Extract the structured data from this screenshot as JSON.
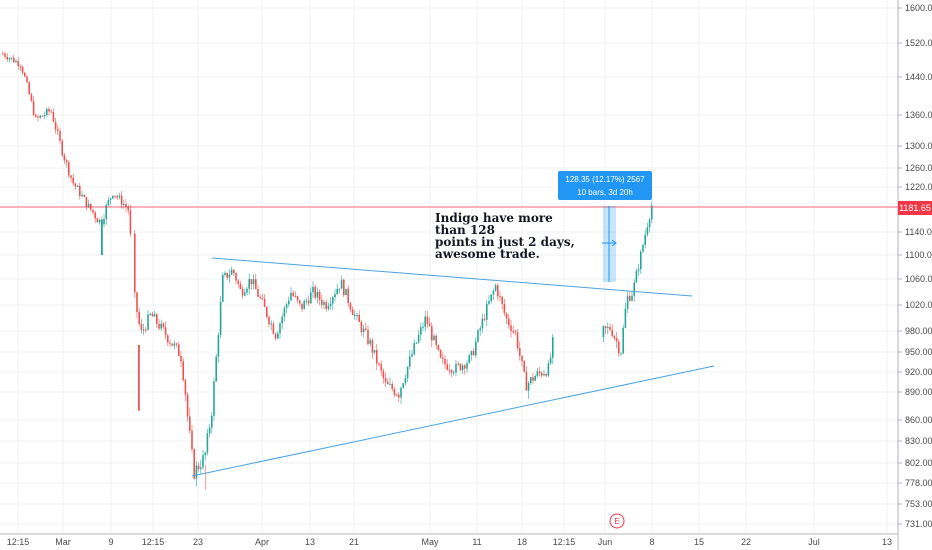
{
  "chart_data": {
    "type": "candlestick",
    "symbol": "Indigo",
    "y_axis_ticks": [
      "1600.00",
      "1520.00",
      "1440.00",
      "1360.00",
      "1300.00",
      "1260.00",
      "1220.00",
      "1180.00",
      "1140.00",
      "1100.00",
      "1060.00",
      "1020.00",
      "980.00",
      "950.00",
      "920.00",
      "890.00",
      "860.00",
      "830.00",
      "802.00",
      "778.00",
      "753.00",
      "731.00"
    ],
    "x_axis_ticks": [
      "12:15",
      "Mar",
      "9",
      "12:15",
      "23",
      "Apr",
      "13",
      "21",
      "May",
      "11",
      "18",
      "12:15",
      "Jun",
      "8",
      "15",
      "22",
      "Jul",
      "13"
    ],
    "last_price": "1181.65",
    "annotation": {
      "text_lines": [
        "Indigo have more than 128",
        "points in just 2 days,",
        "awesome trade."
      ]
    },
    "measure": {
      "line1": "128.35 (12.17%) 2567",
      "line2": "10 bars, 3d 20h"
    },
    "event_marker": "E",
    "colors": {
      "up": "#26a69a",
      "down": "#ef5350",
      "trendline": "#4aa3df",
      "price_line": "#f23645",
      "measure": "#2196f3",
      "grid": "#eef0f3"
    }
  }
}
